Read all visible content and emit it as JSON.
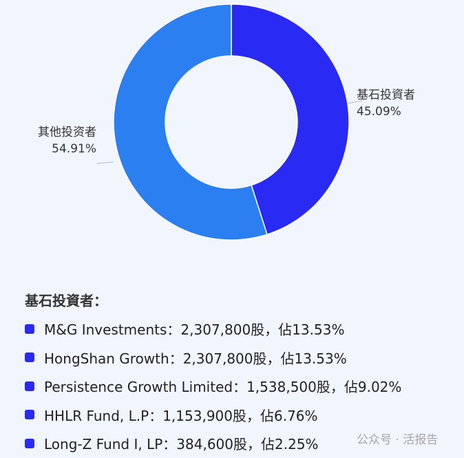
{
  "chart_data": {
    "type": "pie",
    "donut": true,
    "slices": [
      {
        "label": "基石投資者",
        "value": 45.09,
        "display": "45.09%",
        "color": "#2a2af5"
      },
      {
        "label": "其他投资者",
        "value": 54.91,
        "display": "54.91%",
        "color": "#2b7ff0"
      }
    ],
    "legend_placement": "none"
  },
  "notes": {
    "title": "基石投資者：",
    "marker_color": "#2a2af5",
    "items": [
      "M&G Investments：2,307,800股，佔13.53%",
      "HongShan Growth：2,307,800股，佔13.53%",
      "Persistence Growth Limited：1,538,500股，佔9.02%",
      "HHLR Fund, L.P：1,153,900股，佔6.76%",
      "Long-Z Fund I, LP：384,600股，佔2.25%"
    ]
  },
  "watermark": "公众号 · 活报告"
}
